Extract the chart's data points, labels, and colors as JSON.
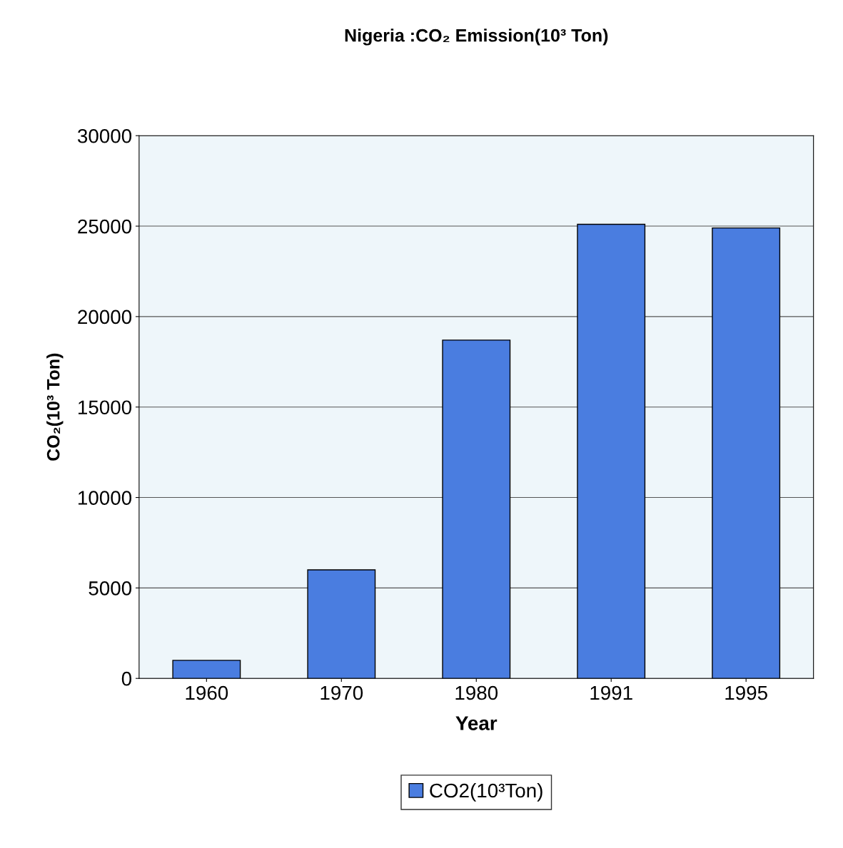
{
  "chart_data": {
    "type": "bar",
    "title": "Nigeria :CO₂ Emission(10³ Ton)",
    "xlabel": "Year",
    "ylabel": "CO₂(10³ Ton)",
    "categories": [
      "1960",
      "1970",
      "1980",
      "1991",
      "1995"
    ],
    "series": [
      {
        "name": "CO2(10³Ton)",
        "color": "#4a7de0",
        "values": [
          1000,
          6000,
          18700,
          25100,
          24900
        ]
      }
    ],
    "ylim": [
      0,
      30000
    ],
    "yticks": [
      0,
      5000,
      10000,
      15000,
      20000,
      25000,
      30000
    ],
    "grid": "y",
    "legend": "bottom"
  }
}
